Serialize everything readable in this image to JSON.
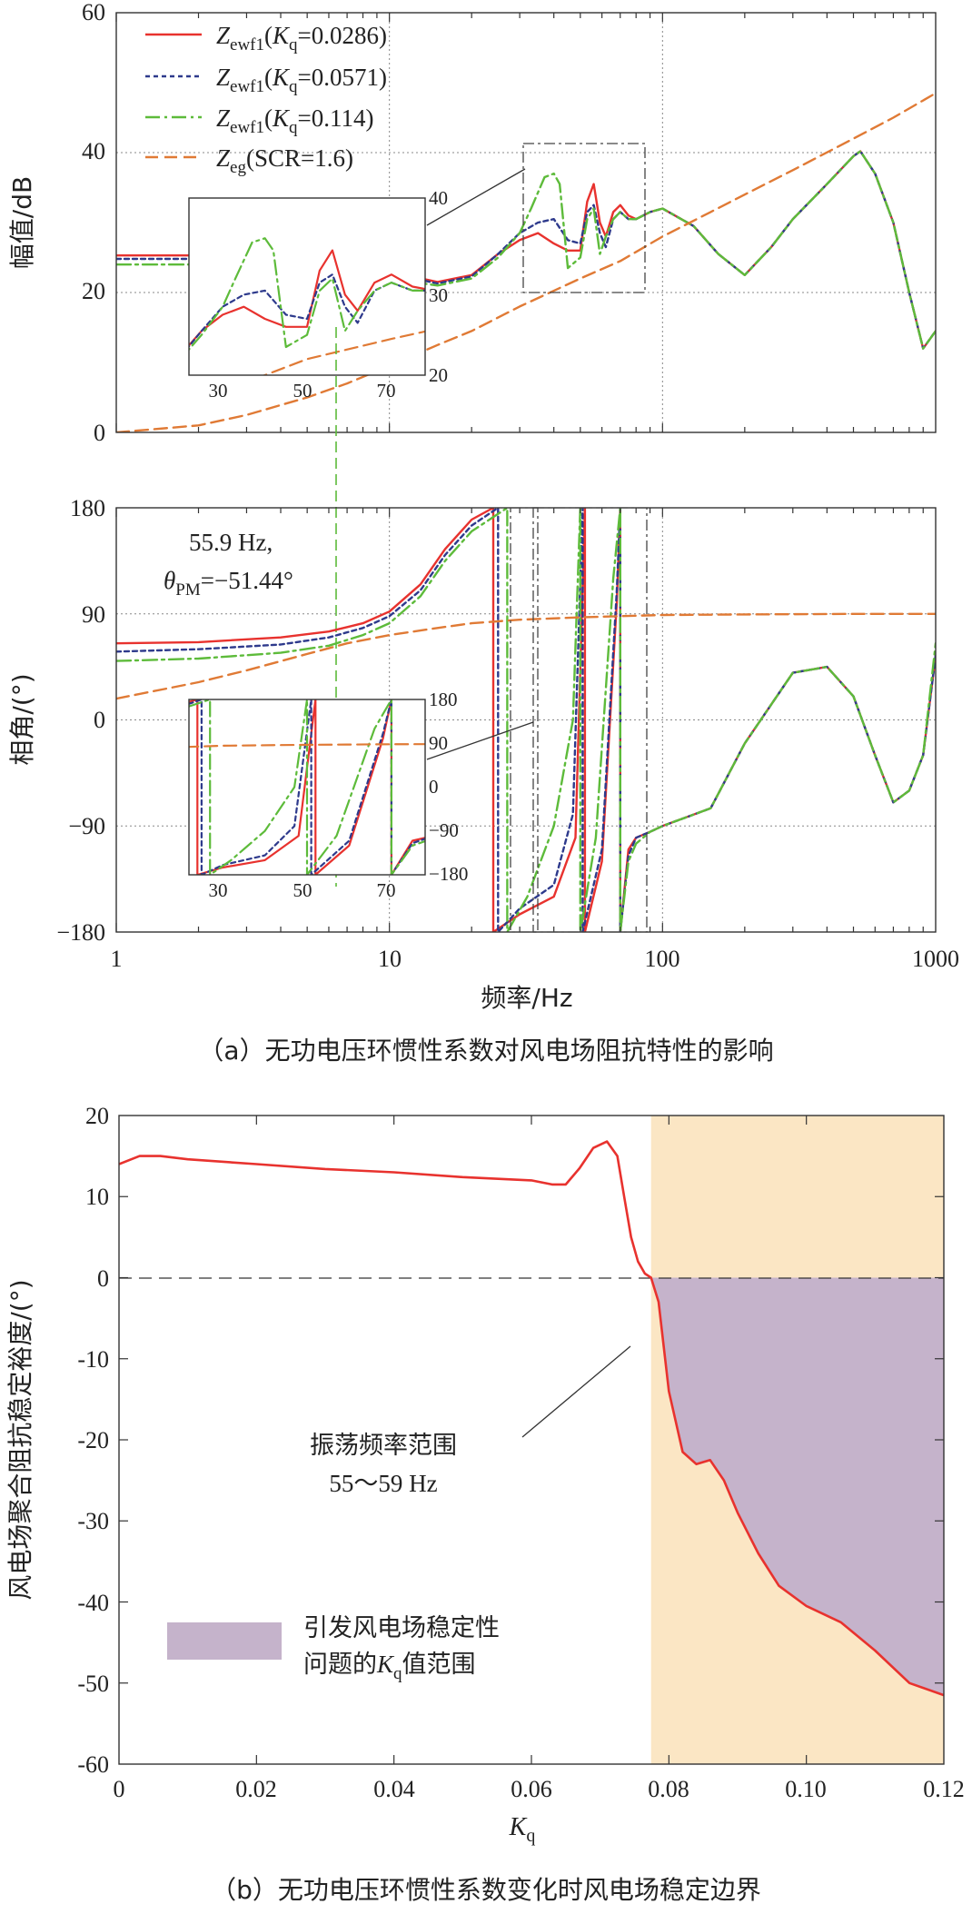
{
  "colors": {
    "red": "#e8322e",
    "blue": "#2e3a8c",
    "green": "#5dbb3a",
    "orange": "#e07a35",
    "shade_orange": "#fbe6c4",
    "shade_purple": "#c5b3cb",
    "guide_green": "#5dbb3a"
  },
  "chart_data": [
    {
      "id": "magnitude",
      "type": "line",
      "xscale": "log",
      "xlim": [
        1,
        1000
      ],
      "ylim": [
        0,
        60
      ],
      "yticks": [
        "0",
        "20",
        "40",
        "60"
      ],
      "xticks_major": [
        1,
        10,
        100,
        1000
      ],
      "ylabel": "幅值/dB",
      "legend": [
        {
          "key": "red",
          "label_main": "Z",
          "label_sub": "ewf1",
          "label_tail": "(",
          "label_k": "K",
          "label_ksub": "q",
          "label_val": "=0.0286)"
        },
        {
          "key": "blue",
          "label_main": "Z",
          "label_sub": "ewf1",
          "label_tail": "(",
          "label_k": "K",
          "label_ksub": "q",
          "label_val": "=0.0571)"
        },
        {
          "key": "green",
          "label_main": "Z",
          "label_sub": "ewf1",
          "label_tail": "(",
          "label_k": "K",
          "label_ksub": "q",
          "label_val": "=0.114)"
        },
        {
          "key": "orange",
          "label_main": "Z",
          "label_sub": "eg",
          "label_tail": "(SCR=1.6)",
          "label_k": "",
          "label_ksub": "",
          "label_val": ""
        }
      ],
      "series": [
        {
          "name": "Zewf1(Kq=0.0286)",
          "color": "red",
          "style": "solid",
          "x": [
            1,
            2,
            4,
            6,
            8,
            10,
            15,
            20,
            25,
            30,
            35,
            40,
            45,
            50,
            53,
            56,
            59,
            62,
            66,
            70,
            75,
            80,
            90,
            100,
            130,
            160,
            200,
            250,
            300,
            400,
            500,
            530,
            600,
            700,
            800,
            900,
            1000
          ],
          "y": [
            25.3,
            25.3,
            25.2,
            24.8,
            24.0,
            23.0,
            21.5,
            22.5,
            25.5,
            27.5,
            28.5,
            27.0,
            26.0,
            26.0,
            33.0,
            35.5,
            30.0,
            28.0,
            31.5,
            32.5,
            31.0,
            30.5,
            31.5,
            32.0,
            29.5,
            25.5,
            22.5,
            26.5,
            30.5,
            35.5,
            39.5,
            40.2,
            37.0,
            30.0,
            20.0,
            12.0,
            14.5
          ]
        },
        {
          "name": "Zewf1(Kq=0.0571)",
          "color": "blue",
          "style": "dotted",
          "x": [
            1,
            2,
            4,
            6,
            8,
            10,
            15,
            20,
            25,
            30,
            35,
            40,
            45,
            50,
            53,
            56,
            59,
            62,
            66,
            70,
            75,
            80,
            90,
            100,
            130,
            160,
            200,
            250,
            300,
            400,
            500,
            530,
            600,
            700,
            800,
            900,
            1000
          ],
          "y": [
            24.8,
            24.8,
            24.6,
            24.2,
            23.6,
            22.7,
            21.3,
            22.3,
            25.5,
            28.5,
            30.0,
            30.5,
            27.5,
            27.0,
            31.5,
            32.5,
            28.5,
            26.5,
            30.5,
            31.5,
            30.5,
            30.5,
            31.5,
            32.0,
            29.5,
            25.5,
            22.5,
            26.5,
            30.5,
            35.5,
            39.5,
            40.2,
            37.0,
            30.0,
            20.0,
            12.0,
            14.5
          ]
        },
        {
          "name": "Zewf1(Kq=0.114)",
          "color": "green",
          "style": "dashdot",
          "x": [
            1,
            2,
            4,
            6,
            8,
            10,
            15,
            20,
            25,
            30,
            33,
            37,
            40,
            42,
            45,
            50,
            53,
            56,
            59,
            62,
            66,
            70,
            75,
            80,
            90,
            100,
            130,
            160,
            200,
            250,
            300,
            400,
            500,
            530,
            600,
            700,
            800,
            900,
            1000
          ],
          "y": [
            24.0,
            24.0,
            23.8,
            23.4,
            22.8,
            22.0,
            21.0,
            22.0,
            25.0,
            28.5,
            32.0,
            36.5,
            37.0,
            35.5,
            23.5,
            25.0,
            30.5,
            32.0,
            25.5,
            28.0,
            30.5,
            31.5,
            30.5,
            30.5,
            31.5,
            32.0,
            29.5,
            25.5,
            22.5,
            26.5,
            30.5,
            35.5,
            39.5,
            40.2,
            37.0,
            30.0,
            20.0,
            12.0,
            14.5
          ]
        },
        {
          "name": "Zeg(SCR=1.6)",
          "color": "orange",
          "style": "dashed",
          "x": [
            1,
            2,
            3,
            5,
            7,
            10,
            15,
            20,
            30,
            50,
            70,
            100,
            150,
            200,
            300,
            500,
            700,
            1000
          ],
          "y": [
            0.0,
            1.0,
            2.5,
            5.0,
            7.0,
            9.5,
            12.5,
            14.5,
            18.0,
            22.0,
            24.5,
            28.0,
            31.5,
            34.0,
            37.5,
            42.0,
            45.0,
            48.5
          ]
        }
      ],
      "inset": {
        "xlim": [
          22,
          78
        ],
        "ylim": [
          20,
          42
        ],
        "xticks": [
          "30",
          "50",
          "70"
        ],
        "yticks": [
          "20",
          "30",
          "40"
        ]
      }
    },
    {
      "id": "phase",
      "type": "line",
      "xscale": "log",
      "xlim": [
        1,
        1000
      ],
      "ylim": [
        -180,
        180
      ],
      "yticks": [
        "−180",
        "−90",
        "0",
        "90",
        "180"
      ],
      "xticks_major": [
        "1",
        "10",
        "100",
        "1000"
      ],
      "xlabel": "频率/Hz",
      "ylabel": "相角/(°)",
      "annotation": {
        "line1": "55.9 Hz,",
        "theta": "θ",
        "theta_sub": "PM",
        "value": "=−51.44°"
      },
      "series": [
        {
          "name": "Zewf1(Kq=0.0286)",
          "color": "red",
          "style": "solid",
          "x": [
            1,
            2,
            4,
            6,
            8,
            10,
            13,
            16,
            20,
            24,
            24,
            30,
            40,
            48,
            52,
            52,
            60,
            68,
            70,
            70,
            75,
            80,
            90,
            100,
            150,
            200,
            300,
            400,
            500,
            600,
            700,
            800,
            900,
            1000
          ],
          "y": [
            65,
            66,
            70,
            75,
            82,
            92,
            115,
            145,
            170,
            180,
            -180,
            -165,
            -150,
            -100,
            180,
            -180,
            -120,
            100,
            180,
            -180,
            -110,
            -100,
            -95,
            -90,
            -75,
            -20,
            40,
            45,
            20,
            -30,
            -70,
            -60,
            -30,
            55
          ]
        },
        {
          "name": "Zewf1(Kq=0.0571)",
          "color": "blue",
          "style": "dotted",
          "x": [
            1,
            2,
            4,
            6,
            8,
            10,
            13,
            16,
            20,
            25,
            25,
            30,
            40,
            47,
            51,
            51,
            60,
            68,
            70,
            70,
            75,
            80,
            90,
            100,
            150,
            200,
            300,
            400,
            500,
            600,
            700,
            800,
            900,
            1000
          ],
          "y": [
            58,
            60,
            64,
            70,
            78,
            88,
            110,
            140,
            165,
            180,
            -180,
            -160,
            -140,
            -80,
            180,
            -180,
            -110,
            110,
            180,
            -180,
            -115,
            -100,
            -95,
            -90,
            -75,
            -20,
            40,
            45,
            20,
            -30,
            -70,
            -60,
            -30,
            55
          ]
        },
        {
          "name": "Zewf1(Kq=0.114)",
          "color": "green",
          "style": "dashdot",
          "x": [
            1,
            2,
            4,
            6,
            8,
            10,
            13,
            16,
            20,
            27,
            27,
            32,
            40,
            47,
            50,
            50,
            57,
            66,
            70,
            70,
            75,
            80,
            90,
            100,
            150,
            200,
            300,
            400,
            500,
            600,
            700,
            800,
            900,
            1000
          ],
          "y": [
            50,
            52,
            57,
            63,
            72,
            82,
            105,
            135,
            160,
            180,
            -180,
            -150,
            -90,
            0,
            180,
            -180,
            -100,
            120,
            180,
            -180,
            -120,
            -105,
            -95,
            -90,
            -75,
            -20,
            40,
            45,
            20,
            -30,
            -70,
            -60,
            -30,
            65
          ]
        },
        {
          "name": "Zeg(SCR=1.6)",
          "color": "orange",
          "style": "dashed",
          "x": [
            1,
            2,
            3,
            5,
            7,
            10,
            15,
            20,
            30,
            50,
            70,
            100,
            200,
            500,
            1000
          ],
          "y": [
            18,
            32,
            42,
            56,
            65,
            72,
            78,
            82,
            85,
            87,
            88,
            89,
            89.5,
            90,
            90
          ]
        }
      ],
      "inset": {
        "xlim": [
          22,
          78
        ],
        "ylim": [
          -180,
          180
        ],
        "xticks": [
          "30",
          "50",
          "70"
        ],
        "yticks": [
          "180",
          "90",
          "0",
          "−90",
          "−180"
        ]
      }
    },
    {
      "id": "margin",
      "type": "area",
      "xlim": [
        0,
        0.12
      ],
      "ylim": [
        -60,
        20
      ],
      "xticks": [
        "0",
        "0.02",
        "0.04",
        "0.06",
        "0.08",
        "0.10",
        "0.12"
      ],
      "yticks": [
        "20",
        "10",
        "0",
        "-10",
        "-20",
        "-30",
        "-40",
        "-50",
        "-60"
      ],
      "xlabel_main": "K",
      "xlabel_sub": "q",
      "ylabel": "风电场聚合阻抗稳定裕度/(°)",
      "shade_start": 0.0774,
      "series": [
        {
          "name": "stability margin",
          "color": "red",
          "style": "solid",
          "x": [
            0,
            0.003,
            0.006,
            0.01,
            0.02,
            0.03,
            0.04,
            0.05,
            0.06,
            0.063,
            0.065,
            0.067,
            0.069,
            0.071,
            0.0725,
            0.0735,
            0.0745,
            0.0755,
            0.0765,
            0.0774,
            0.0785,
            0.08,
            0.082,
            0.084,
            0.086,
            0.088,
            0.09,
            0.093,
            0.096,
            0.1,
            0.105,
            0.11,
            0.115,
            0.12
          ],
          "y": [
            14.0,
            15.0,
            15.0,
            14.6,
            14.0,
            13.4,
            13.0,
            12.4,
            12.0,
            11.5,
            11.5,
            13.5,
            16.0,
            16.8,
            15.0,
            10.0,
            5.0,
            2.0,
            0.5,
            0.0,
            -3.0,
            -14.0,
            -21.5,
            -23.0,
            -22.5,
            -25.0,
            -29.0,
            -34.0,
            -38.0,
            -40.5,
            -42.5,
            -46.0,
            -50.0,
            -51.5
          ]
        }
      ],
      "callout": {
        "line1": "振荡频率范围",
        "line2": "55～59 Hz"
      },
      "legend": {
        "line1": "引发风电场稳定性",
        "line2_pre": "问题的",
        "line2_k": "K",
        "line2_ksub": "q",
        "line2_post": "值范围"
      }
    }
  ],
  "captions": {
    "a": "（a）无功电压环惯性系数对风电场阻抗特性的影响",
    "b": "（b）无功电压环惯性系数变化时风电场稳定边界"
  }
}
